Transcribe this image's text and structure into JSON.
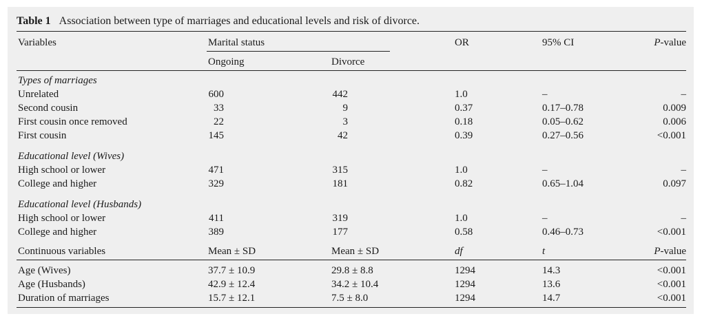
{
  "caption": {
    "number": "Table 1",
    "text": "Association between type of marriages and educational levels and risk of divorce."
  },
  "header": {
    "variables": "Variables",
    "marital_status": "Marital status",
    "or": "OR",
    "ci": "95% CI",
    "pvalue": "P-value",
    "ongoing": "Ongoing",
    "divorce": "Divorce"
  },
  "sections": [
    {
      "title": "Types of marriages",
      "rows": [
        {
          "label": "Unrelated",
          "ongoing": "600",
          "divorce": "442",
          "or": "1.0",
          "ci": "–",
          "p": "–"
        },
        {
          "label": "Second cousin",
          "ongoing": "33",
          "divorce": "9",
          "or": "0.37",
          "ci": "0.17–0.78",
          "p": "0.009"
        },
        {
          "label": "First cousin once removed",
          "ongoing": "22",
          "divorce": "3",
          "or": "0.18",
          "ci": "0.05–0.62",
          "p": "0.006"
        },
        {
          "label": "First cousin",
          "ongoing": "145",
          "divorce": "42",
          "or": "0.39",
          "ci": "0.27–0.56",
          "p": "<0.001"
        }
      ]
    },
    {
      "title": "Educational level (Wives)",
      "rows": [
        {
          "label": "High school or lower",
          "ongoing": "471",
          "divorce": "315",
          "or": "1.0",
          "ci": "–",
          "p": "–"
        },
        {
          "label": "College and higher",
          "ongoing": "329",
          "divorce": "181",
          "or": "0.82",
          "ci": "0.65–1.04",
          "p": "0.097"
        }
      ]
    },
    {
      "title": "Educational level (Husbands)",
      "rows": [
        {
          "label": "High school or lower",
          "ongoing": "411",
          "divorce": "319",
          "or": "1.0",
          "ci": "–",
          "p": "–"
        },
        {
          "label": "College and higher",
          "ongoing": "389",
          "divorce": "177",
          "or": "0.58",
          "ci": "0.46–0.73",
          "p": "<0.001"
        }
      ]
    }
  ],
  "continuous_header": {
    "label": "Continuous variables",
    "mean1": "Mean ± SD",
    "mean2": "Mean ± SD",
    "df": "df",
    "t": "t",
    "pvalue": "P-value"
  },
  "continuous_rows": [
    {
      "label": "Age (Wives)",
      "ongoing": "37.7 ± 10.9",
      "divorce": "29.8 ± 8.8",
      "df": "1294",
      "t": "14.3",
      "p": "<0.001"
    },
    {
      "label": "Age (Husbands)",
      "ongoing": "42.9 ± 12.4",
      "divorce": "34.2 ± 10.4",
      "df": "1294",
      "t": "13.6",
      "p": "<0.001"
    },
    {
      "label": "Duration of marriages",
      "ongoing": "15.7 ± 12.1",
      "divorce": "7.5 ± 8.0",
      "df": "1294",
      "t": "14.7",
      "p": "<0.001"
    }
  ]
}
